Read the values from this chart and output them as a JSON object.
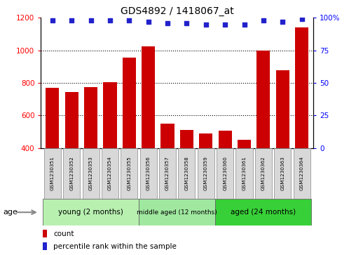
{
  "title": "GDS4892 / 1418067_at",
  "samples": [
    "GSM1230351",
    "GSM1230352",
    "GSM1230353",
    "GSM1230354",
    "GSM1230355",
    "GSM1230356",
    "GSM1230357",
    "GSM1230358",
    "GSM1230359",
    "GSM1230360",
    "GSM1230361",
    "GSM1230362",
    "GSM1230363",
    "GSM1230364"
  ],
  "counts": [
    770,
    745,
    775,
    805,
    955,
    1025,
    548,
    512,
    490,
    508,
    448,
    1000,
    878,
    1140
  ],
  "percentiles": [
    98,
    98,
    98,
    98,
    98,
    97,
    96,
    96,
    95,
    95,
    95,
    98,
    97,
    99
  ],
  "groups": [
    {
      "label": "young (2 months)",
      "start": 0,
      "end": 5,
      "color": "#b8f0b0"
    },
    {
      "label": "middle aged (12 months)",
      "start": 5,
      "end": 9,
      "color": "#a0e8a0"
    },
    {
      "label": "aged (24 months)",
      "start": 9,
      "end": 14,
      "color": "#38d038"
    }
  ],
  "bar_color": "#CC0000",
  "dot_color": "#2222CC",
  "ylim_left": [
    400,
    1200
  ],
  "ylim_right": [
    0,
    100
  ],
  "yticks_left": [
    400,
    600,
    800,
    1000,
    1200
  ],
  "yticks_right": [
    0,
    25,
    50,
    75,
    100
  ],
  "grid_values": [
    600,
    800,
    1000
  ],
  "age_label": "age",
  "legend_count": "count",
  "legend_percentile": "percentile rank within the sample",
  "tick_label_bg": "#d8d8d8"
}
